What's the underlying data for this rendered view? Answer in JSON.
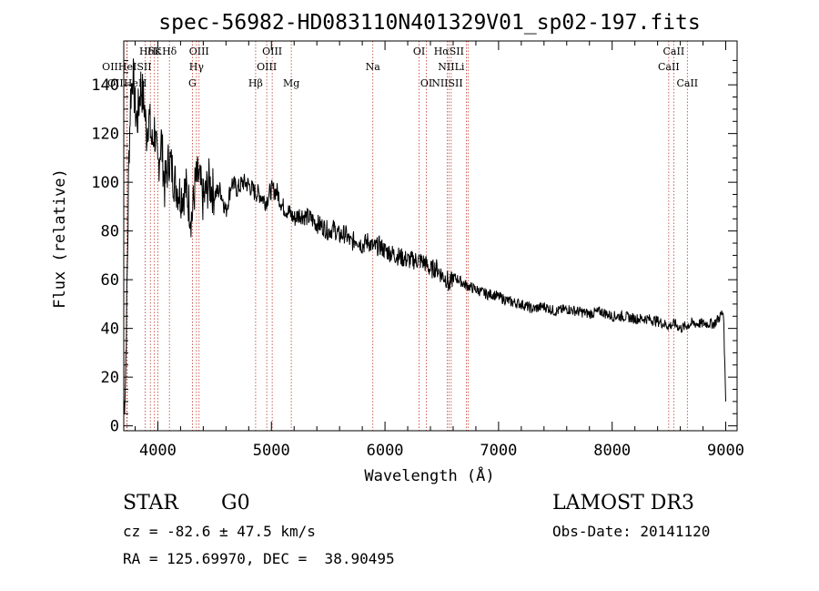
{
  "chart_data": {
    "type": "line",
    "title": "spec-56982-HD083110N401329V01_sp02-197.fits",
    "xlabel": "Wavelength (Å)",
    "ylabel": "Flux (relative)",
    "xlim": [
      3700,
      9100
    ],
    "ylim": [
      -2,
      158
    ],
    "xticks": [
      4000,
      5000,
      6000,
      7000,
      8000,
      9000
    ],
    "yticks": [
      0,
      20,
      40,
      60,
      80,
      100,
      120,
      140
    ],
    "series": [
      {
        "name": "flux",
        "x": [
          3700,
          3715,
          3730,
          3745,
          3760,
          3780,
          3800,
          3820,
          3850,
          3880,
          3900,
          3920,
          3950,
          3970,
          4000,
          4030,
          4060,
          4100,
          4150,
          4200,
          4250,
          4300,
          4330,
          4360,
          4400,
          4450,
          4500,
          4550,
          4600,
          4650,
          4700,
          4750,
          4800,
          4850,
          4900,
          4950,
          5000,
          5050,
          5100,
          5150,
          5200,
          5250,
          5300,
          5350,
          5400,
          5450,
          5500,
          5550,
          5600,
          5650,
          5700,
          5750,
          5800,
          5850,
          5900,
          5950,
          6000,
          6050,
          6100,
          6150,
          6200,
          6250,
          6300,
          6350,
          6400,
          6450,
          6500,
          6550,
          6563,
          6600,
          6650,
          6700,
          6750,
          6800,
          6850,
          6900,
          6950,
          7000,
          7100,
          7200,
          7300,
          7400,
          7500,
          7600,
          7700,
          7800,
          7900,
          8000,
          8100,
          8200,
          8300,
          8400,
          8500,
          8550,
          8600,
          8650,
          8700,
          8800,
          8900,
          8950,
          8980,
          9000
        ],
        "values": [
          5,
          20,
          60,
          110,
          135,
          145,
          130,
          125,
          140,
          132,
          120,
          128,
          115,
          122,
          105,
          118,
          98,
          110,
          100,
          95,
          97,
          85,
          100,
          102,
          92,
          100,
          95,
          97,
          88,
          100,
          97,
          100,
          99,
          96,
          95,
          92,
          97,
          96,
          90,
          88,
          85,
          87,
          86,
          85,
          83,
          82,
          80,
          81,
          78,
          79,
          75,
          77,
          74,
          76,
          73,
          74,
          72,
          71,
          70,
          69,
          68,
          68,
          68,
          67,
          64,
          65,
          62,
          60,
          57,
          61,
          60,
          58,
          57,
          56,
          55,
          54,
          54,
          53,
          51,
          50,
          48,
          49,
          47,
          48,
          47,
          46,
          47,
          45,
          45,
          44,
          44,
          43,
          41,
          42,
          40,
          41,
          42,
          42,
          42,
          45,
          47,
          10
        ]
      }
    ],
    "lines": [
      {
        "label": "HδK",
        "wave": 3934,
        "row": 0
      },
      {
        "label": "Hε",
        "wave": 3970,
        "row": 0
      },
      {
        "label": "Hδ",
        "wave": 4102,
        "row": 0
      },
      {
        "label": "OIII",
        "wave": 4363,
        "row": 0
      },
      {
        "label": "OIII",
        "wave": 5007,
        "row": 0
      },
      {
        "label": "OI",
        "wave": 6300,
        "row": 0
      },
      {
        "label": "HαSII",
        "wave": 6563,
        "row": 0
      },
      {
        "label": "CaII",
        "wave": 8542,
        "row": 0
      },
      {
        "label": "OIIHeISII",
        "wave": 3727,
        "row": 1
      },
      {
        "label": "Hγ",
        "wave": 4340,
        "row": 1
      },
      {
        "label": "OIII",
        "wave": 4959,
        "row": 1
      },
      {
        "label": "Na",
        "wave": 5893,
        "row": 1
      },
      {
        "label": "NIILi",
        "wave": 6583,
        "row": 1
      },
      {
        "label": "CaII",
        "wave": 8498,
        "row": 1
      },
      {
        "label": "OIIHeH",
        "wave": 3730,
        "row": 2
      },
      {
        "label": "G",
        "wave": 4304,
        "row": 2
      },
      {
        "label": "Hβ",
        "wave": 4861,
        "row": 2
      },
      {
        "label": "Mg",
        "wave": 5175,
        "row": 2
      },
      {
        "label": "OI",
        "wave": 6364,
        "row": 2
      },
      {
        "label": "NIISII",
        "wave": 6548,
        "row": 2
      },
      {
        "label": "CaII",
        "wave": 8662,
        "row": 2
      }
    ],
    "line_waves_extra": [
      3889,
      4000,
      6716,
      6731
    ]
  },
  "info": {
    "object_class": "STAR",
    "subclass": "G0",
    "survey": "LAMOST DR3",
    "cz": "cz = -82.6 ± 47.5 km/s",
    "obs_date": "Obs-Date: 20141120",
    "coords": "RA = 125.69970, DEC =  38.90495"
  }
}
